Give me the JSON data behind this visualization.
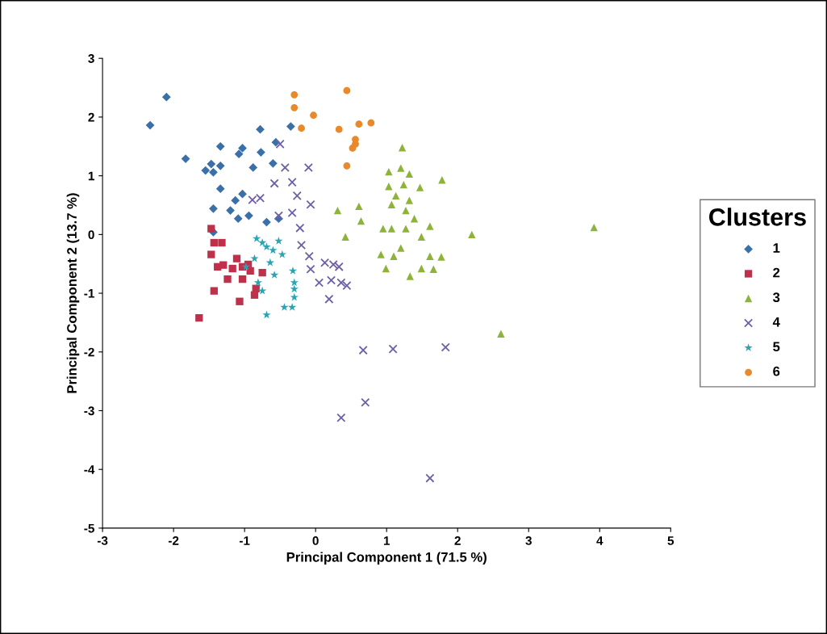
{
  "chart_data": {
    "type": "scatter",
    "xlabel": "Principal Component 1 (71.5 %)",
    "ylabel": "Principal Component 2 (13.7 %)",
    "legend_title": "Clusters",
    "legend": "right",
    "grid": false,
    "xlim": [
      -3,
      5
    ],
    "xticks": [
      -3,
      -2,
      -1,
      0,
      1,
      2,
      3,
      4,
      5
    ],
    "ylim": [
      -5,
      3
    ],
    "yticks": [
      -5,
      -4,
      -3,
      -2,
      -1,
      0,
      1,
      2,
      3
    ],
    "series": [
      {
        "name": "1",
        "color": "#3b6fa8",
        "marker": "diamond",
        "x": [
          -2.33,
          -2.1,
          -1.83,
          -1.55,
          -1.44,
          -1.47,
          -1.34,
          -1.34,
          -1.34,
          -1.03,
          -0.78,
          -1.03,
          -1.13,
          -1.2,
          -1.44,
          -0.77,
          -0.88,
          -0.56,
          -0.6,
          -0.35,
          -1.08,
          -1.09,
          -0.94,
          -0.69,
          -0.52,
          -1.44
        ],
        "values": [
          1.86,
          2.34,
          1.29,
          1.09,
          1.06,
          1.2,
          1.17,
          1.5,
          0.78,
          1.47,
          1.79,
          0.69,
          0.58,
          0.41,
          0.44,
          1.4,
          1.14,
          1.57,
          1.21,
          1.84,
          1.37,
          0.27,
          0.32,
          0.21,
          0.27,
          0.04
        ]
      },
      {
        "name": "2",
        "color": "#c0304a",
        "marker": "square",
        "x": [
          -1.47,
          -1.43,
          -1.47,
          -1.32,
          -1.38,
          -1.3,
          -1.24,
          -1.17,
          -1.11,
          -1.03,
          -0.95,
          -0.92,
          -1.03,
          -0.75,
          -0.84,
          -0.86,
          -1.43,
          -1.07,
          -1.64
        ],
        "values": [
          0.1,
          -0.14,
          -0.34,
          -0.14,
          -0.55,
          -0.52,
          -0.76,
          -0.58,
          -0.41,
          -0.55,
          -0.51,
          -0.62,
          -0.76,
          -0.65,
          -0.92,
          -1.03,
          -0.96,
          -1.14,
          -1.42
        ]
      },
      {
        "name": "3",
        "color": "#8db33a",
        "marker": "triangle",
        "x": [
          1.22,
          1.03,
          1.2,
          1.32,
          1.78,
          1.03,
          1.24,
          1.47,
          1.13,
          1.32,
          1.07,
          1.27,
          1.39,
          0.95,
          1.07,
          1.27,
          1.61,
          1.49,
          1.2,
          0.92,
          1.1,
          1.61,
          1.77,
          0.99,
          1.49,
          1.66,
          1.33,
          0.61,
          0.31,
          0.64,
          0.42,
          2.2,
          3.92,
          2.61
        ],
        "values": [
          1.48,
          1.07,
          1.13,
          1.03,
          0.93,
          0.82,
          0.85,
          0.8,
          0.66,
          0.58,
          0.51,
          0.41,
          0.27,
          0.1,
          0.1,
          0.1,
          0.14,
          -0.04,
          -0.23,
          -0.34,
          -0.37,
          -0.37,
          -0.38,
          -0.58,
          -0.58,
          -0.59,
          -0.71,
          0.48,
          0.41,
          0.23,
          -0.04,
          0.0,
          0.12,
          -1.69
        ]
      },
      {
        "name": "4",
        "color": "#6e5fa6",
        "marker": "cross",
        "x": [
          -0.5,
          -0.43,
          -0.1,
          -0.58,
          -0.33,
          -0.26,
          -0.07,
          -0.33,
          -0.52,
          -0.22,
          -0.2,
          -0.09,
          -0.07,
          0.13,
          0.25,
          0.33,
          0.05,
          0.22,
          0.36,
          0.44,
          0.19,
          -0.89,
          -0.78,
          0.67,
          1.09,
          1.83,
          0.7,
          0.36,
          1.61
        ],
        "values": [
          1.54,
          1.14,
          1.14,
          0.87,
          0.89,
          0.66,
          0.51,
          0.37,
          0.32,
          0.11,
          -0.18,
          -0.37,
          -0.59,
          -0.48,
          -0.51,
          -0.55,
          -0.82,
          -0.78,
          -0.82,
          -0.87,
          -1.1,
          0.59,
          0.62,
          -1.97,
          -1.95,
          -1.92,
          -2.86,
          -3.12,
          -4.15
        ]
      },
      {
        "name": "5",
        "color": "#2aa3b3",
        "marker": "star",
        "x": [
          -0.83,
          -0.75,
          -0.69,
          -0.6,
          -0.52,
          -0.47,
          -0.86,
          -0.64,
          -0.81,
          -0.58,
          -0.32,
          -0.3,
          -0.3,
          -0.3,
          -0.33,
          -0.44,
          -0.69,
          -0.75,
          -0.98
        ],
        "values": [
          -0.07,
          -0.14,
          -0.21,
          -0.27,
          -0.11,
          -0.34,
          -0.41,
          -0.48,
          -0.82,
          -0.69,
          -0.62,
          -0.82,
          -0.93,
          -1.07,
          -1.24,
          -1.24,
          -1.37,
          -0.96,
          -0.55
        ]
      },
      {
        "name": "6",
        "color": "#e8892b",
        "marker": "circle",
        "x": [
          -0.3,
          -0.3,
          -0.03,
          -0.2,
          0.44,
          0.33,
          0.61,
          0.78,
          0.56,
          0.56,
          0.52,
          0.44
        ],
        "values": [
          2.38,
          2.16,
          2.03,
          1.81,
          2.45,
          1.79,
          1.88,
          1.9,
          1.62,
          1.54,
          1.47,
          1.17
        ]
      }
    ]
  }
}
